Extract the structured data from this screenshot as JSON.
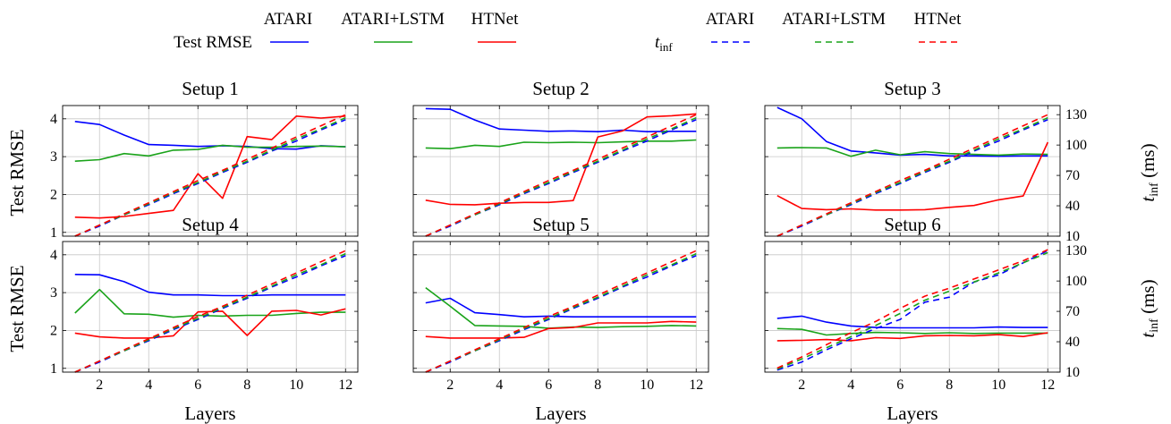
{
  "legend": {
    "rmse_label": "Test RMSE",
    "tinf_label": "t",
    "tinf_sub": "inf",
    "series_names": [
      "ATARI",
      "ATARI+LSTM",
      "HTNet"
    ]
  },
  "colors": {
    "ATARI": "#0000ff",
    "ATARI+LSTM": "#1aa31a",
    "HTNet": "#ff0000"
  },
  "y_left_label": "Test RMSE",
  "y_right_label_main": "t",
  "y_right_label_sub": "inf",
  "y_right_label_unit": "(ms)",
  "chart_data": [
    {
      "type": "line",
      "title": "Setup 1",
      "xlabel": "Layers",
      "ylabel": "Test RMSE",
      "x": [
        1,
        2,
        3,
        4,
        5,
        6,
        7,
        8,
        9,
        10,
        11,
        12
      ],
      "xlim": [
        0.5,
        12.5
      ],
      "xticks": [
        2,
        4,
        6,
        8,
        10,
        12
      ],
      "ylim": [
        0.9,
        4.35
      ],
      "yticks": [
        1,
        2,
        3,
        4
      ],
      "y2lim": [
        10,
        139
      ],
      "y2ticks": [
        10,
        40,
        70,
        100,
        130
      ],
      "y2label": "t_inf (ms)",
      "grid": true,
      "series": [
        {
          "name": "ATARI",
          "metric": "Test RMSE",
          "values": [
            3.93,
            3.85,
            3.57,
            3.32,
            3.3,
            3.27,
            3.29,
            3.27,
            3.21,
            3.2,
            3.29,
            3.26
          ]
        },
        {
          "name": "ATARI+LSTM",
          "metric": "Test RMSE",
          "values": [
            2.88,
            2.92,
            3.08,
            3.02,
            3.17,
            3.19,
            3.3,
            3.25,
            3.25,
            3.27,
            3.28,
            3.26
          ]
        },
        {
          "name": "HTNet",
          "metric": "Test RMSE",
          "values": [
            1.4,
            1.38,
            1.42,
            1.5,
            1.58,
            2.55,
            1.9,
            3.53,
            3.45,
            4.07,
            4.02,
            4.07
          ]
        },
        {
          "name": "ATARI",
          "metric": "t_inf (ms)",
          "values": [
            10,
            20,
            31,
            41,
            52,
            62,
            73,
            83,
            94,
            104,
            115,
            125
          ]
        },
        {
          "name": "ATARI+LSTM",
          "metric": "t_inf (ms)",
          "values": [
            10,
            21,
            31,
            42,
            53,
            63,
            74,
            84,
            95,
            106,
            116,
            127
          ]
        },
        {
          "name": "HTNet",
          "metric": "t_inf (ms)",
          "values": [
            10,
            21,
            32,
            43,
            54,
            65,
            75,
            86,
            97,
            108,
            119,
            130
          ]
        }
      ]
    },
    {
      "type": "line",
      "title": "Setup 2",
      "xlabel": "Layers",
      "ylabel": "Test RMSE",
      "x": [
        1,
        2,
        3,
        4,
        5,
        6,
        7,
        8,
        9,
        10,
        11,
        12
      ],
      "xlim": [
        0.5,
        12.5
      ],
      "xticks": [
        2,
        4,
        6,
        8,
        10,
        12
      ],
      "ylim": [
        0.9,
        4.35
      ],
      "yticks": [
        1,
        2,
        3,
        4
      ],
      "y2lim": [
        10,
        139
      ],
      "y2ticks": [
        10,
        40,
        70,
        100,
        130
      ],
      "y2label": "t_inf (ms)",
      "grid": true,
      "series": [
        {
          "name": "ATARI",
          "metric": "Test RMSE",
          "values": [
            4.27,
            4.25,
            3.97,
            3.73,
            3.7,
            3.67,
            3.68,
            3.66,
            3.7,
            3.66,
            3.67,
            3.67
          ]
        },
        {
          "name": "ATARI+LSTM",
          "metric": "Test RMSE",
          "values": [
            3.23,
            3.21,
            3.3,
            3.27,
            3.38,
            3.37,
            3.38,
            3.37,
            3.39,
            3.41,
            3.41,
            3.44
          ]
        },
        {
          "name": "HTNet",
          "metric": "Test RMSE",
          "values": [
            1.85,
            1.74,
            1.73,
            1.77,
            1.79,
            1.79,
            1.84,
            3.52,
            3.68,
            4.05,
            4.08,
            4.13
          ]
        },
        {
          "name": "ATARI",
          "metric": "t_inf (ms)",
          "values": [
            10,
            20,
            31,
            41,
            52,
            62,
            73,
            83,
            94,
            104,
            115,
            125
          ]
        },
        {
          "name": "ATARI+LSTM",
          "metric": "t_inf (ms)",
          "values": [
            10,
            21,
            31,
            42,
            53,
            63,
            74,
            84,
            95,
            106,
            116,
            127
          ]
        },
        {
          "name": "HTNet",
          "metric": "t_inf (ms)",
          "values": [
            10,
            21,
            32,
            43,
            54,
            65,
            75,
            86,
            97,
            108,
            119,
            130
          ]
        }
      ]
    },
    {
      "type": "line",
      "title": "Setup 3",
      "xlabel": "Layers",
      "ylabel": "Test RMSE",
      "x": [
        1,
        2,
        3,
        4,
        5,
        6,
        7,
        8,
        9,
        10,
        11,
        12
      ],
      "xlim": [
        0.5,
        12.5
      ],
      "xticks": [
        2,
        4,
        6,
        8,
        10,
        12
      ],
      "ylim": [
        0.9,
        4.35
      ],
      "yticks": [
        1,
        2,
        3,
        4
      ],
      "y2lim": [
        10,
        139
      ],
      "y2ticks": [
        10,
        40,
        70,
        100,
        130
      ],
      "y2label": "t_inf (ms)",
      "grid": true,
      "series": [
        {
          "name": "ATARI",
          "metric": "Test RMSE",
          "values": [
            4.3,
            4.0,
            3.4,
            3.15,
            3.1,
            3.04,
            3.06,
            3.02,
            3.02,
            3.01,
            3.02,
            3.02
          ]
        },
        {
          "name": "ATARI+LSTM",
          "metric": "Test RMSE",
          "values": [
            3.23,
            3.24,
            3.23,
            3.01,
            3.17,
            3.05,
            3.13,
            3.08,
            3.06,
            3.04,
            3.07,
            3.06
          ]
        },
        {
          "name": "HTNet",
          "metric": "Test RMSE",
          "values": [
            1.97,
            1.63,
            1.6,
            1.62,
            1.59,
            1.59,
            1.6,
            1.66,
            1.71,
            1.86,
            1.96,
            3.38
          ]
        },
        {
          "name": "ATARI",
          "metric": "t_inf (ms)",
          "values": [
            10,
            20,
            31,
            41,
            52,
            62,
            73,
            83,
            94,
            104,
            115,
            125
          ]
        },
        {
          "name": "ATARI+LSTM",
          "metric": "t_inf (ms)",
          "values": [
            10,
            21,
            31,
            42,
            53,
            63,
            74,
            84,
            95,
            106,
            116,
            127
          ]
        },
        {
          "name": "HTNet",
          "metric": "t_inf (ms)",
          "values": [
            10,
            21,
            32,
            43,
            54,
            65,
            75,
            86,
            97,
            108,
            119,
            130
          ]
        }
      ]
    },
    {
      "type": "line",
      "title": "Setup 4",
      "xlabel": "Layers",
      "ylabel": "Test RMSE",
      "x": [
        1,
        2,
        3,
        4,
        5,
        6,
        7,
        8,
        9,
        10,
        11,
        12
      ],
      "xlim": [
        0.5,
        12.5
      ],
      "xticks": [
        2,
        4,
        6,
        8,
        10,
        12
      ],
      "ylim": [
        0.9,
        4.35
      ],
      "yticks": [
        1,
        2,
        3,
        4
      ],
      "y2lim": [
        10,
        139
      ],
      "y2ticks": [
        10,
        40,
        70,
        100,
        130
      ],
      "y2label": "t_inf (ms)",
      "grid": true,
      "series": [
        {
          "name": "ATARI",
          "metric": "Test RMSE",
          "values": [
            3.48,
            3.47,
            3.29,
            3.01,
            2.94,
            2.94,
            2.92,
            2.92,
            2.94,
            2.94,
            2.94,
            2.94
          ]
        },
        {
          "name": "ATARI+LSTM",
          "metric": "Test RMSE",
          "values": [
            2.46,
            3.08,
            2.44,
            2.43,
            2.35,
            2.4,
            2.38,
            2.4,
            2.4,
            2.45,
            2.48,
            2.48
          ]
        },
        {
          "name": "HTNet",
          "metric": "Test RMSE",
          "values": [
            1.93,
            1.83,
            1.8,
            1.8,
            1.86,
            2.49,
            2.51,
            1.87,
            2.51,
            2.53,
            2.41,
            2.57
          ]
        },
        {
          "name": "ATARI",
          "metric": "t_inf (ms)",
          "values": [
            10,
            20,
            31,
            41,
            52,
            62,
            73,
            83,
            94,
            104,
            115,
            125
          ]
        },
        {
          "name": "ATARI+LSTM",
          "metric": "t_inf (ms)",
          "values": [
            10,
            21,
            31,
            42,
            53,
            63,
            74,
            84,
            95,
            106,
            116,
            127
          ]
        },
        {
          "name": "HTNet",
          "metric": "t_inf (ms)",
          "values": [
            10,
            21,
            32,
            43,
            54,
            65,
            75,
            86,
            97,
            108,
            119,
            130
          ]
        }
      ]
    },
    {
      "type": "line",
      "title": "Setup 5",
      "xlabel": "Layers",
      "ylabel": "Test RMSE",
      "x": [
        1,
        2,
        3,
        4,
        5,
        6,
        7,
        8,
        9,
        10,
        11,
        12
      ],
      "xlim": [
        0.5,
        12.5
      ],
      "xticks": [
        2,
        4,
        6,
        8,
        10,
        12
      ],
      "ylim": [
        0.9,
        4.35
      ],
      "yticks": [
        1,
        2,
        3,
        4
      ],
      "y2lim": [
        10,
        139
      ],
      "y2ticks": [
        10,
        40,
        70,
        100,
        130
      ],
      "y2label": "t_inf (ms)",
      "grid": true,
      "series": [
        {
          "name": "ATARI",
          "metric": "Test RMSE",
          "values": [
            2.73,
            2.85,
            2.47,
            2.42,
            2.36,
            2.38,
            2.36,
            2.36,
            2.36,
            2.36,
            2.36,
            2.36
          ]
        },
        {
          "name": "ATARI+LSTM",
          "metric": "Test RMSE",
          "values": [
            3.13,
            2.64,
            2.13,
            2.12,
            2.11,
            2.06,
            2.09,
            2.08,
            2.1,
            2.11,
            2.13,
            2.12
          ]
        },
        {
          "name": "HTNet",
          "metric": "Test RMSE",
          "values": [
            1.84,
            1.8,
            1.8,
            1.8,
            1.82,
            2.05,
            2.08,
            2.2,
            2.2,
            2.2,
            2.24,
            2.22
          ]
        },
        {
          "name": "ATARI",
          "metric": "t_inf (ms)",
          "values": [
            10,
            20,
            31,
            41,
            52,
            62,
            73,
            83,
            94,
            104,
            115,
            125
          ]
        },
        {
          "name": "ATARI+LSTM",
          "metric": "t_inf (ms)",
          "values": [
            10,
            21,
            31,
            42,
            53,
            63,
            74,
            84,
            95,
            106,
            116,
            127
          ]
        },
        {
          "name": "HTNet",
          "metric": "t_inf (ms)",
          "values": [
            10,
            21,
            32,
            43,
            54,
            65,
            75,
            86,
            97,
            108,
            119,
            130
          ]
        }
      ]
    },
    {
      "type": "line",
      "title": "Setup 6",
      "xlabel": "Layers",
      "ylabel": "Test RMSE",
      "x": [
        1,
        2,
        3,
        4,
        5,
        6,
        7,
        8,
        9,
        10,
        11,
        12
      ],
      "xlim": [
        0.5,
        12.5
      ],
      "xticks": [
        2,
        4,
        6,
        8,
        10,
        12
      ],
      "ylim": [
        0.9,
        4.35
      ],
      "yticks": [
        1,
        2,
        3,
        4
      ],
      "y2lim": [
        10,
        139
      ],
      "y2ticks": [
        10,
        40,
        70,
        100,
        130
      ],
      "y2label": "t_inf (ms)",
      "grid": true,
      "series": [
        {
          "name": "ATARI",
          "metric": "Test RMSE",
          "values": [
            2.32,
            2.38,
            2.22,
            2.12,
            2.08,
            2.07,
            2.07,
            2.07,
            2.07,
            2.09,
            2.08,
            2.08
          ]
        },
        {
          "name": "ATARI+LSTM",
          "metric": "Test RMSE",
          "values": [
            2.05,
            2.03,
            1.88,
            1.92,
            1.95,
            1.94,
            1.92,
            1.94,
            1.92,
            1.93,
            1.93,
            1.93
          ]
        },
        {
          "name": "HTNet",
          "metric": "Test RMSE",
          "values": [
            1.73,
            1.74,
            1.76,
            1.73,
            1.81,
            1.79,
            1.86,
            1.87,
            1.86,
            1.89,
            1.84,
            1.94
          ]
        },
        {
          "name": "ATARI",
          "metric": "t_inf (ms)",
          "values": [
            12,
            20,
            32,
            43,
            53,
            62,
            79,
            84,
            99,
            106,
            118,
            130
          ]
        },
        {
          "name": "ATARI+LSTM",
          "metric": "t_inf (ms)",
          "values": [
            13,
            23,
            34,
            45,
            56,
            68,
            81,
            90,
            99,
            108,
            118,
            128
          ]
        },
        {
          "name": "HTNet",
          "metric": "t_inf (ms)",
          "values": [
            14,
            25,
            37,
            49,
            60,
            73,
            85,
            93,
            102,
            111,
            120,
            131
          ]
        }
      ]
    }
  ]
}
